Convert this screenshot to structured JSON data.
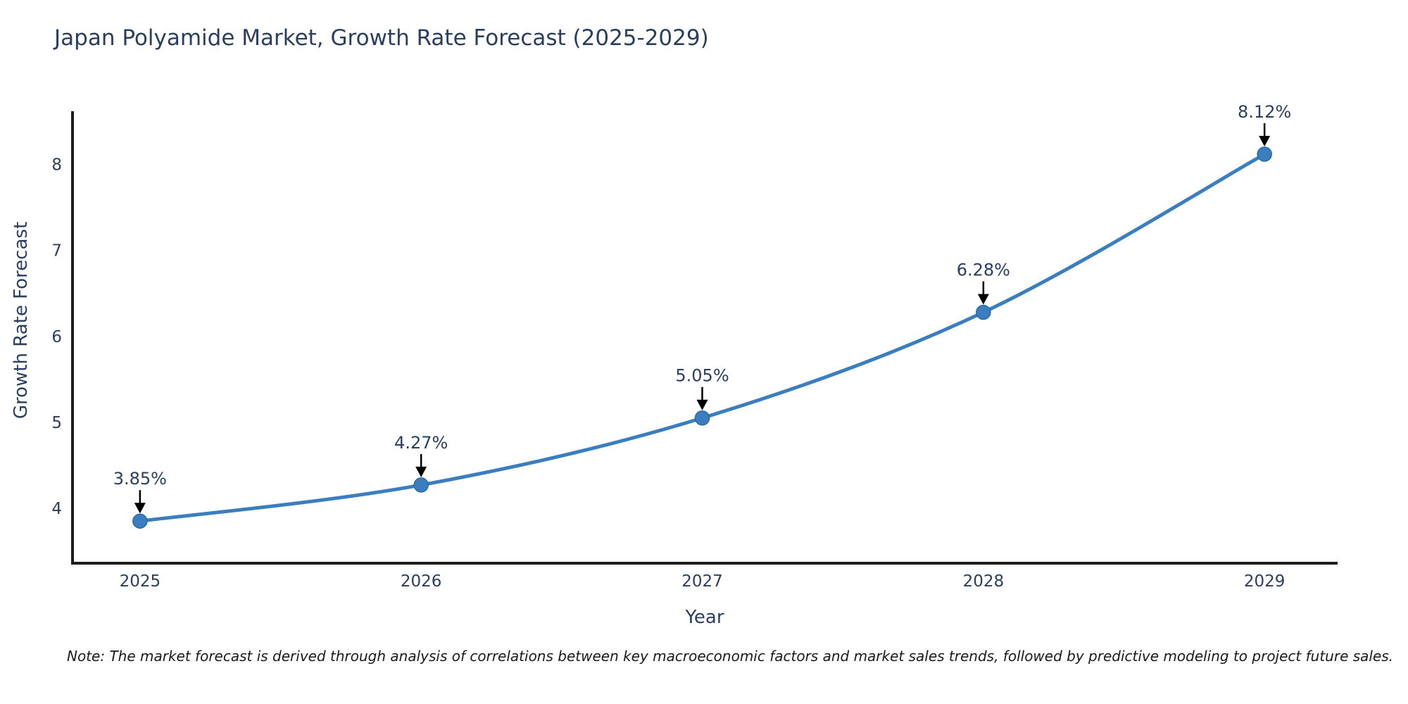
{
  "page": {
    "title": "Japan Polyamide Market, Growth Rate Forecast (2025-2029)",
    "note": "Note: The market forecast is derived through analysis of correlations between key macroeconomic factors and market sales trends, followed by predictive modeling to project future sales."
  },
  "chart_data": {
    "type": "line",
    "title": "Japan Polyamide Market, Growth Rate Forecast (2025-2029)",
    "xlabel": "Year",
    "ylabel": "Growth Rate Forecast",
    "x": [
      2025,
      2026,
      2027,
      2028,
      2029
    ],
    "series": [
      {
        "name": "Growth Rate Forecast",
        "values": [
          3.85,
          4.27,
          5.05,
          6.28,
          8.12
        ]
      }
    ],
    "point_labels": [
      "3.85%",
      "4.27%",
      "5.05%",
      "6.28%",
      "8.12%"
    ],
    "xticks": [
      "2025",
      "2026",
      "2027",
      "2028",
      "2029"
    ],
    "xtick_values": [
      2025,
      2026,
      2027,
      2028,
      2029
    ],
    "yticks": [
      "4",
      "5",
      "6",
      "7",
      "8"
    ],
    "ytick_values": [
      4,
      5,
      6,
      7,
      8
    ],
    "xlim": [
      2024.76,
      2029.26
    ],
    "ylim": [
      3.36,
      8.62
    ],
    "grid": false,
    "legend_position": "none",
    "line_color": "#3a7ebf",
    "marker_color": "#3a7ebf",
    "marker_edge_color": "#2a6aa5",
    "arrow_color": "#000000",
    "axis_line_color": "#1c1c1c",
    "text_color": "#2a3f5f",
    "background_color": "#ffffff"
  }
}
